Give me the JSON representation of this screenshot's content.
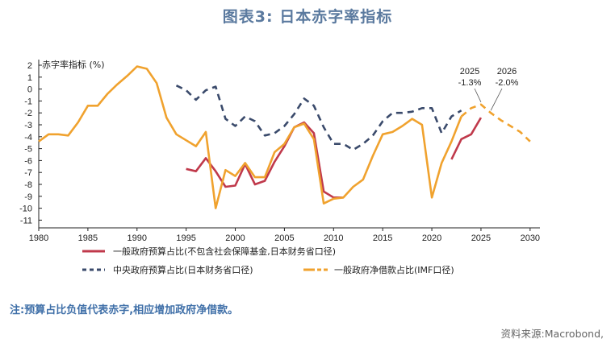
{
  "page": {
    "title": "图表3:  日本赤字率指标",
    "note": "注:预算占比负值代表赤字,相应增加政府净借款。",
    "source": "资料来源:Macrobond,"
  },
  "chart_data": {
    "type": "line",
    "ylabel": "赤字率指标 (%)",
    "xlim": [
      1980,
      2031
    ],
    "ylim": [
      -11,
      2.5
    ],
    "x_ticks": [
      1980,
      1985,
      1990,
      1995,
      2000,
      2005,
      2010,
      2015,
      2020,
      2025,
      2030
    ],
    "y_ticks": [
      2,
      1,
      0,
      -1,
      -2,
      -3,
      -4,
      -5,
      -6,
      -7,
      -8,
      -9,
      -10,
      -11
    ],
    "grid": false,
    "legend_position": "bottom",
    "series": [
      {
        "name": "一般政府预算占比(不包含社会保障基金,日本财务省口径)",
        "color": "#c0394b",
        "style": "solid",
        "points": [
          [
            1995,
            -6.7
          ],
          [
            1996,
            -6.9
          ],
          [
            1997,
            -5.8
          ],
          [
            1998,
            -6.9
          ],
          [
            1999,
            -8.2
          ],
          [
            2000,
            -8.1
          ],
          [
            2001,
            -6.3
          ],
          [
            2002,
            -8.0
          ],
          [
            2003,
            -7.7
          ],
          [
            2004,
            -6.1
          ],
          [
            2005,
            -4.8
          ],
          [
            2006,
            -3.2
          ],
          [
            2007,
            -2.8
          ],
          [
            2008,
            -3.7
          ],
          [
            2009,
            -8.6
          ],
          [
            2010,
            -9.1
          ],
          [
            2011,
            -9.1
          ]
        ]
      },
      {
        "name": "一般政府预算占比(不包含社会保障基金,日本财务省口径)",
        "color": "#c0394b",
        "style": "solid",
        "points": [
          [
            2022,
            -5.9
          ],
          [
            2023,
            -4.2
          ],
          [
            2024,
            -3.8
          ],
          [
            2025,
            -2.4
          ]
        ]
      },
      {
        "name": "中央政府预算占比(日本财务省口径)",
        "color": "#3a4a6b",
        "style": "dashed",
        "points": [
          [
            1994,
            0.3
          ],
          [
            1995,
            -0.1
          ],
          [
            1996,
            -0.9
          ],
          [
            1997,
            -0.1
          ],
          [
            1998,
            0.2
          ],
          [
            1999,
            -2.5
          ],
          [
            2000,
            -3.1
          ],
          [
            2001,
            -2.3
          ],
          [
            2002,
            -2.7
          ],
          [
            2003,
            -3.9
          ],
          [
            2004,
            -3.7
          ],
          [
            2005,
            -3.1
          ],
          [
            2006,
            -2.1
          ],
          [
            2007,
            -0.8
          ],
          [
            2008,
            -1.4
          ],
          [
            2009,
            -3.2
          ],
          [
            2010,
            -4.6
          ],
          [
            2011,
            -4.6
          ],
          [
            2012,
            -5.1
          ],
          [
            2013,
            -4.6
          ],
          [
            2014,
            -3.9
          ],
          [
            2015,
            -2.7
          ],
          [
            2016,
            -2.0
          ],
          [
            2017,
            -2.0
          ],
          [
            2018,
            -1.9
          ],
          [
            2019,
            -1.6
          ],
          [
            2020,
            -1.6
          ],
          [
            2021,
            -3.7
          ],
          [
            2022,
            -2.3
          ],
          [
            2023,
            -1.8
          ]
        ]
      },
      {
        "name": "一般政府净借款占比(IMF口径)",
        "color": "#f0a22e",
        "style": "solid",
        "points": [
          [
            1980,
            -4.4
          ],
          [
            1981,
            -3.8
          ],
          [
            1982,
            -3.8
          ],
          [
            1983,
            -3.9
          ],
          [
            1984,
            -2.8
          ],
          [
            1985,
            -1.4
          ],
          [
            1986,
            -1.4
          ],
          [
            1987,
            -0.4
          ],
          [
            1988,
            0.4
          ],
          [
            1989,
            1.1
          ],
          [
            1990,
            1.9
          ],
          [
            1991,
            1.7
          ],
          [
            1992,
            0.5
          ],
          [
            1993,
            -2.4
          ],
          [
            1994,
            -3.8
          ],
          [
            1995,
            -4.3
          ],
          [
            1996,
            -4.8
          ],
          [
            1997,
            -3.6
          ],
          [
            1998,
            -10.0
          ],
          [
            1999,
            -6.8
          ],
          [
            2000,
            -7.3
          ],
          [
            2001,
            -6.2
          ],
          [
            2002,
            -7.4
          ],
          [
            2003,
            -7.4
          ],
          [
            2004,
            -5.3
          ],
          [
            2005,
            -4.6
          ],
          [
            2006,
            -3.2
          ],
          [
            2007,
            -2.9
          ],
          [
            2008,
            -4.2
          ],
          [
            2009,
            -9.6
          ],
          [
            2010,
            -9.2
          ],
          [
            2011,
            -9.1
          ],
          [
            2012,
            -8.2
          ],
          [
            2013,
            -7.6
          ],
          [
            2014,
            -5.6
          ],
          [
            2015,
            -3.8
          ],
          [
            2016,
            -3.6
          ],
          [
            2017,
            -3.1
          ],
          [
            2018,
            -2.5
          ],
          [
            2019,
            -3.0
          ],
          [
            2020,
            -9.1
          ],
          [
            2021,
            -6.2
          ],
          [
            2022,
            -4.4
          ],
          [
            2023,
            -2.3
          ]
        ]
      },
      {
        "name": "一般政府净借款占比(IMF口径)",
        "color": "#f0a22e",
        "style": "dashed",
        "points": [
          [
            2023,
            -2.3
          ],
          [
            2024,
            -1.6
          ],
          [
            2025,
            -1.3
          ],
          [
            2026,
            -2.0
          ],
          [
            2027,
            -2.6
          ],
          [
            2028,
            -3.1
          ],
          [
            2029,
            -3.6
          ],
          [
            2030,
            -4.4
          ]
        ]
      }
    ],
    "annotations": [
      {
        "x": 2025,
        "y": -1.3,
        "label_year": "2025",
        "label_value": "-1.3%"
      },
      {
        "x": 2026,
        "y": -2.0,
        "label_year": "2026",
        "label_value": "-2.0%"
      }
    ],
    "legend": [
      {
        "label": "一般政府预算占比(不包含社会保障基金,日本财务省口径)",
        "color": "#c0394b",
        "style": "solid"
      },
      {
        "label": "中央政府预算占比(日本财务省口径)",
        "color": "#3a4a6b",
        "style": "dashed"
      },
      {
        "label": "一般政府净借款占比(IMF口径)",
        "color": "#f0a22e",
        "style": "mixed"
      }
    ]
  }
}
